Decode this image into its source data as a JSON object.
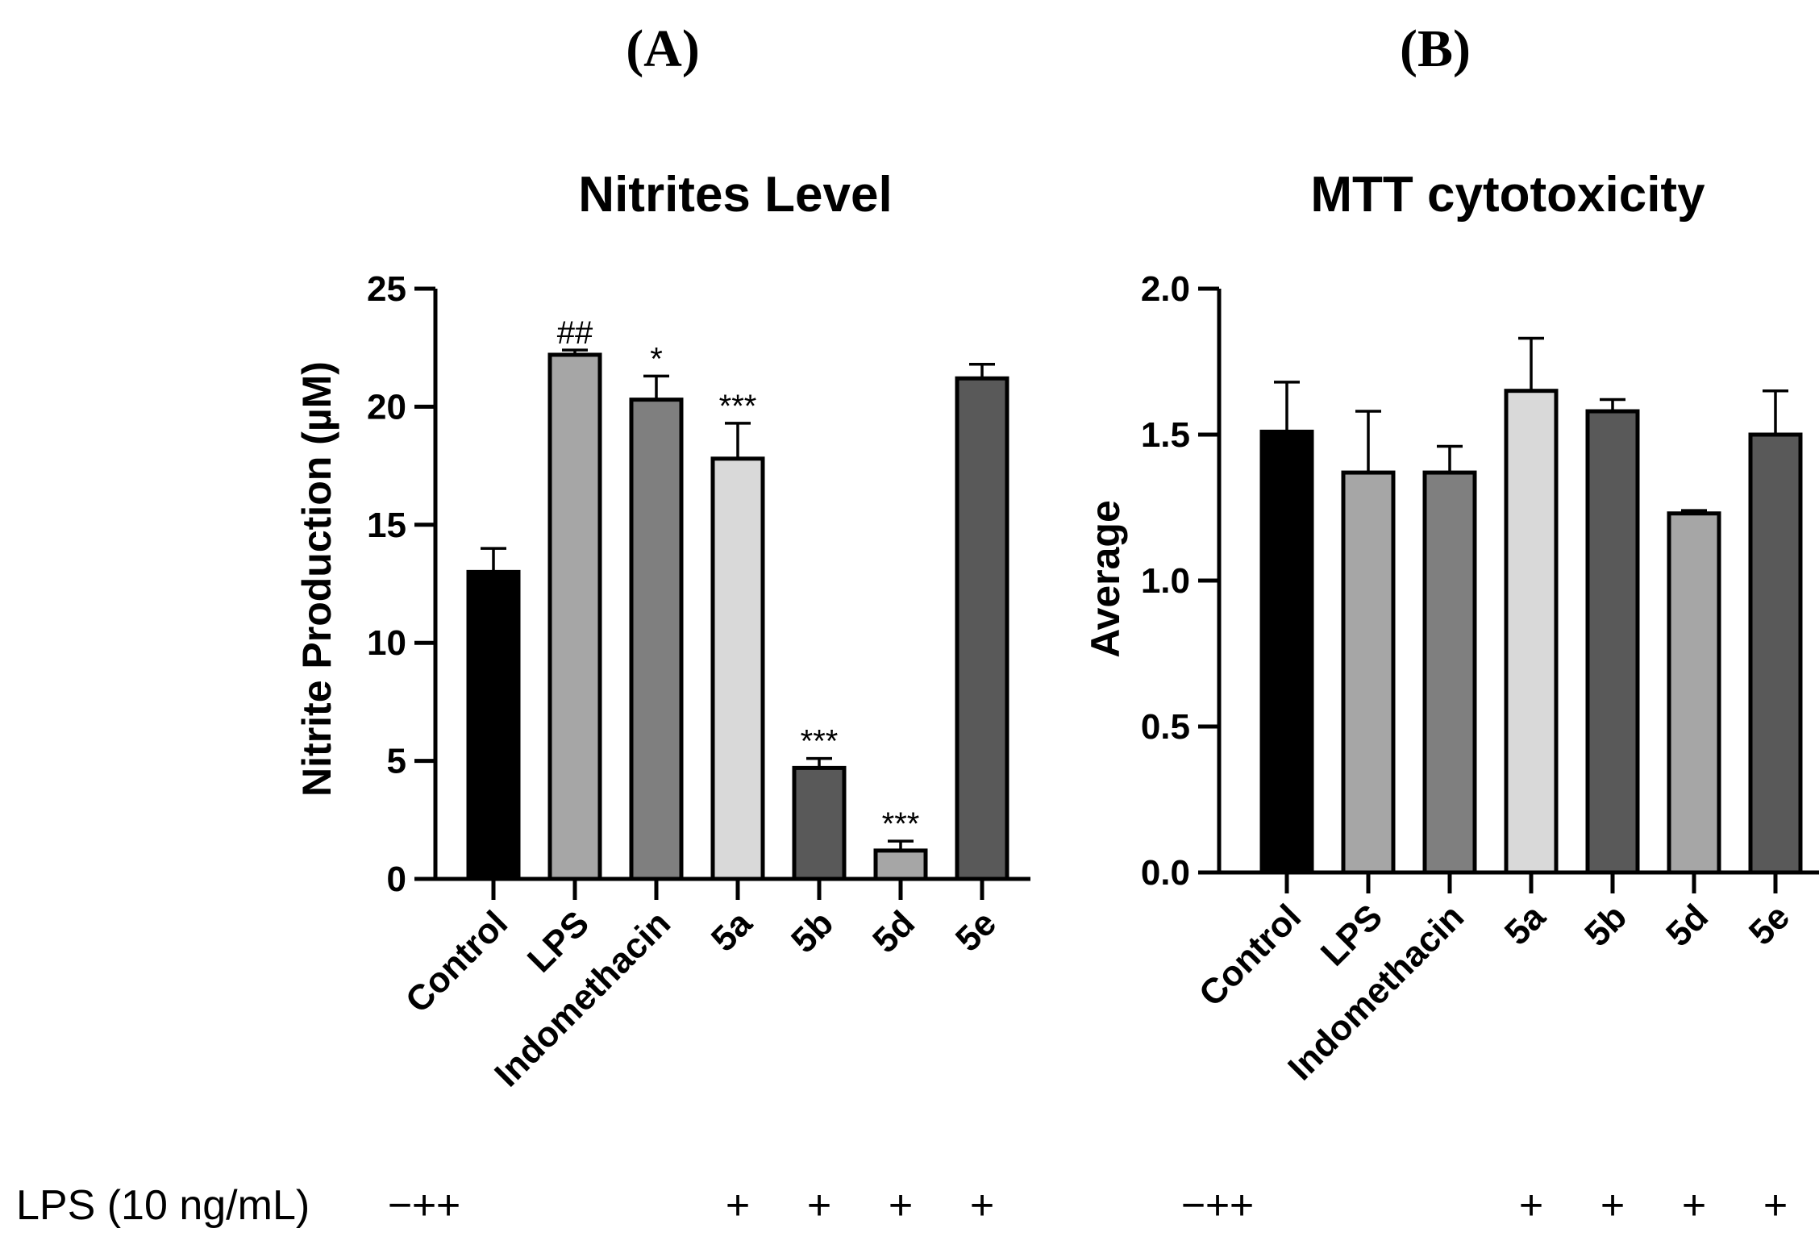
{
  "panels": [
    "(A)",
    "(B)"
  ],
  "lps_row": {
    "label": "LPS (10 ng/mL)",
    "signs": [
      "−",
      "+",
      "+",
      "+",
      "+",
      "+",
      "+"
    ]
  },
  "colors": {
    "control": "#000000",
    "lps": "#a6a6a6",
    "indomethacin": "#7f7f7f",
    "5a": "#d9d9d9",
    "5b": "#595959",
    "5d": "#a6a6a6",
    "5e": "#595959",
    "stroke": "#000000"
  },
  "chart_data": [
    {
      "type": "bar",
      "title": "Nitrites Level",
      "xlabel": "",
      "ylabel": "Nitrite Production (µM)",
      "ylim": [
        0,
        25
      ],
      "yticks": [
        "0",
        "5",
        "10",
        "15",
        "20",
        "25"
      ],
      "categories": [
        "Control",
        "LPS",
        "Indomethacin",
        "5a",
        "5b",
        "5d",
        "5e"
      ],
      "values": [
        13.0,
        22.2,
        20.3,
        17.8,
        4.7,
        1.2,
        21.2
      ],
      "errors": [
        1.0,
        0.2,
        1.0,
        1.5,
        0.4,
        0.4,
        0.6
      ],
      "annotations": [
        "",
        "##",
        "*",
        "***",
        "***",
        "***",
        ""
      ]
    },
    {
      "type": "bar",
      "title": "MTT cytotoxicity",
      "xlabel": "",
      "ylabel": "Average",
      "ylim": [
        0,
        2.0
      ],
      "yticks": [
        "0.0",
        "0.5",
        "1.0",
        "1.5",
        "2.0"
      ],
      "categories": [
        "Control",
        "LPS",
        "Indomethacin",
        "5a",
        "5b",
        "5d",
        "5e"
      ],
      "values": [
        1.51,
        1.37,
        1.37,
        1.65,
        1.58,
        1.23,
        1.5
      ],
      "errors": [
        0.17,
        0.21,
        0.09,
        0.18,
        0.04,
        0.01,
        0.15
      ],
      "annotations": [
        "",
        "",
        "",
        "",
        "",
        "",
        ""
      ]
    }
  ]
}
